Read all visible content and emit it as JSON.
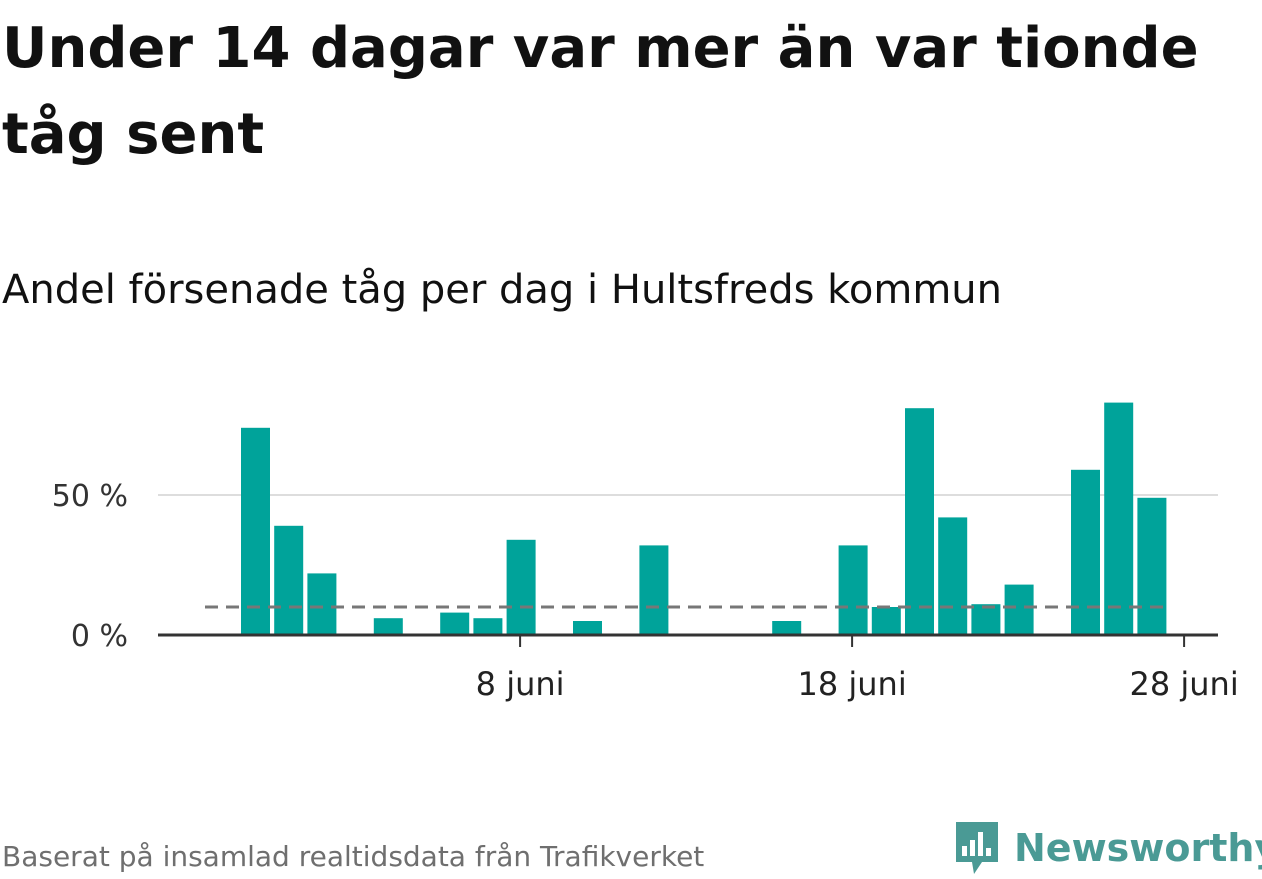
{
  "header": {
    "title": "Under 14 dagar var mer än var tionde tåg sent",
    "subtitle": "Andel försenade tåg per dag i Hultsfreds kommun"
  },
  "footer": {
    "source": "Baserat på insamlad realtidsdata från Trafikverket",
    "brand": "Newsworthy",
    "brand_icon": "newsworthy-logo-icon",
    "brand_color": "#4a9a95"
  },
  "colors": {
    "bar": "#00a39a",
    "reference_line": "#777777",
    "gridline": "#dddddd",
    "axis": "#333333"
  },
  "chart_data": {
    "type": "bar",
    "title": "Andel försenade tåg per dag i Hultsfreds kommun",
    "xlabel": "",
    "ylabel": "",
    "x_range": [
      31,
      58
    ],
    "ylim": [
      0,
      85
    ],
    "y_ticks": [
      {
        "value": 0,
        "label": "0 %"
      },
      {
        "value": 50,
        "label": "50 %"
      }
    ],
    "x_ticks": [
      {
        "value": 39,
        "label": "8 juni"
      },
      {
        "value": 49,
        "label": "18 juni"
      },
      {
        "value": 59,
        "label": "28 juni"
      }
    ],
    "reference_line": {
      "value": 10,
      "style": "dashed"
    },
    "grid": true,
    "legend": "none",
    "x": [
      31,
      32,
      33,
      35,
      37,
      38,
      39,
      41,
      43,
      47,
      49,
      50,
      51,
      52,
      53,
      54,
      56,
      57,
      58
    ],
    "values": [
      74,
      39,
      22,
      6,
      8,
      6,
      34,
      5,
      32,
      5,
      32,
      10,
      81,
      42,
      11,
      18,
      59,
      83,
      49
    ]
  }
}
